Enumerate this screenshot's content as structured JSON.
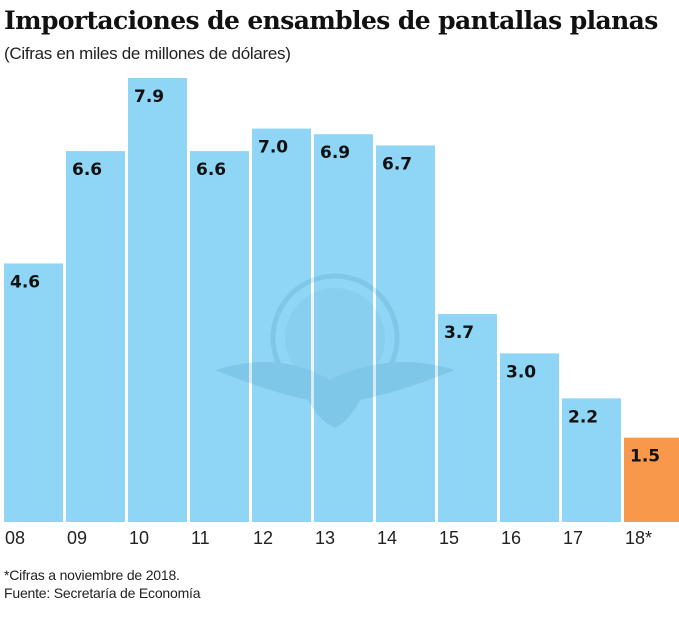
{
  "chart_data": {
    "type": "bar",
    "title": "Importaciones de ensambles de pantallas planas",
    "subtitle": "(Cifras en miles de millones de dólares)",
    "xlabel": "",
    "ylabel": "",
    "categories": [
      "08",
      "09",
      "10",
      "11",
      "12",
      "13",
      "14",
      "15",
      "16",
      "17",
      "18*"
    ],
    "values": [
      4.6,
      6.6,
      7.9,
      6.6,
      7.0,
      6.9,
      6.7,
      3.7,
      3.0,
      2.2,
      1.5
    ],
    "value_labels": [
      "4.6",
      "6.6",
      "7.9",
      "6.6",
      "7.0",
      "6.9",
      "6.7",
      "3.7",
      "3.0",
      "2.2",
      "1.5"
    ],
    "highlight_index": 10,
    "ylim": [
      0,
      7.9
    ],
    "grid": false,
    "legend": "none",
    "colors": {
      "bar": "#8fd5f5",
      "highlight": "#f7984a",
      "label": "#111111",
      "watermark": "#6fb8d8"
    },
    "footnotes": [
      "*Cifras a noviembre de 2018.",
      "Fuente: Secretaría de Economía"
    ]
  }
}
